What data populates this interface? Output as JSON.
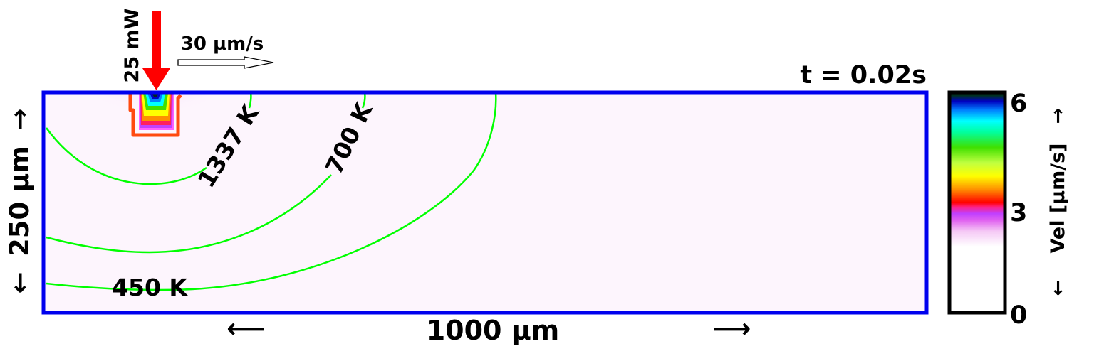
{
  "laser": {
    "power_label": "25 mW",
    "scan_speed_label": "30 µm/s"
  },
  "time_label": "t = 0.02s",
  "domain_box": {
    "width_label": "1000 µm",
    "height_label": "250 µm"
  },
  "isotherms": [
    {
      "label": "1337 K"
    },
    {
      "label": "700 K"
    },
    {
      "label": "450 K"
    }
  ],
  "colorbar": {
    "label": "Vel [µm/s]",
    "ticks": [
      "6",
      "3",
      "0"
    ],
    "range": [
      0,
      6.3
    ]
  },
  "colors": {
    "box_border": "#0000ee",
    "isotherm": "#00ff00",
    "laser_arrow": "#ff0000",
    "melt_pool_outline": "#ff4a10",
    "domain_fill": "#fdf5fd"
  }
}
